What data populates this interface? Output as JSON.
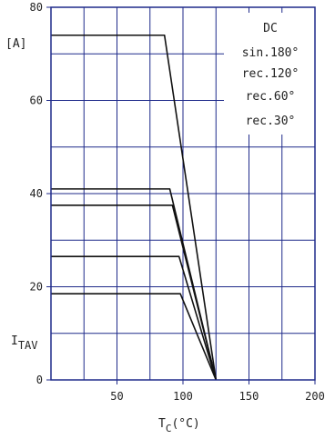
{
  "colors": {
    "grid": "#1f2a8a",
    "frame": "#1f2a8a",
    "curve": "#111111",
    "background": "#ffffff"
  },
  "chart_data": {
    "type": "line",
    "xlabel": "T",
    "xlabel_sub": "C",
    "xlabel_unit": "(°C)",
    "ylabel": "I",
    "ylabel_sub": "TAV",
    "yunit": "[A]",
    "xlim": [
      0,
      200
    ],
    "ylim": [
      0,
      80
    ],
    "x_ticks": [
      "50",
      "100",
      "150",
      "200"
    ],
    "y_ticks": [
      "0",
      "20",
      "40",
      "60",
      "80"
    ],
    "grid": true,
    "legend_position": "top-right",
    "legend": [
      "DC",
      "sin.180°",
      "rec.120°",
      "rec.60°",
      "rec.30°"
    ],
    "series": [
      {
        "name": "DC",
        "x": [
          0,
          86,
          125
        ],
        "y": [
          74,
          74,
          0
        ]
      },
      {
        "name": "sin.180°",
        "x": [
          0,
          90,
          125
        ],
        "y": [
          41,
          41,
          0
        ]
      },
      {
        "name": "rec.120°",
        "x": [
          0,
          92,
          125
        ],
        "y": [
          37.5,
          37.5,
          0
        ]
      },
      {
        "name": "rec.60°",
        "x": [
          0,
          97,
          125
        ],
        "y": [
          26.5,
          26.5,
          0
        ]
      },
      {
        "name": "rec.30°",
        "x": [
          0,
          98,
          125
        ],
        "y": [
          18.5,
          18.5,
          0
        ]
      }
    ]
  }
}
